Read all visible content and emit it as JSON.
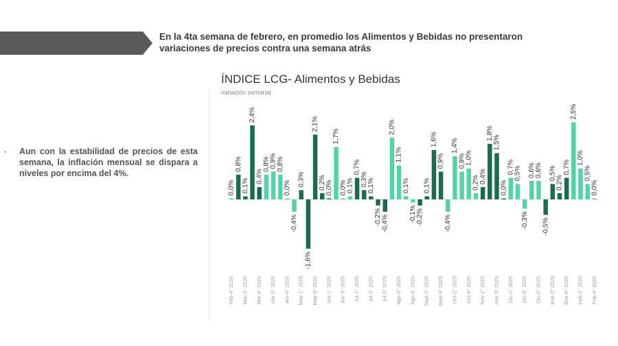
{
  "header": {
    "headline": "En la 4ta semana de febrero, en promedio los Alimentos y Bebidas no presentaron variaciones de precios contra una semana atrás",
    "banner_color": "#5a5a5a"
  },
  "bullet": {
    "text": "Aun con la estabilidad de precios de esta semana, la inflación mensual se dispara a niveles por encima del 4%."
  },
  "chart_data": {
    "type": "bar",
    "title": "ÍNDICE LCG- Alimentos y Bebidas",
    "subtitle": "variación semanal",
    "colors": {
      "dark": "#1b6b50",
      "light": "#52d3aa"
    },
    "tick_labels": [
      "Feb-4° 2025",
      "Mar-2° 2025",
      "Mar-4° 2025",
      "Abr-2° 2025",
      "Abr-4° 2025",
      "May-1° 2025",
      "May-3° 2025",
      "Jun-1° 2025",
      "Jun-3° 2025",
      "Jul-1° 2025",
      "Jul-3° 2025",
      "Jul-5° 2025",
      "Ago-2° 2025",
      "Ago-4° 2025",
      "Sept-2° 2025",
      "Sept-4° 2025",
      "Oct-2° 2025",
      "Oct-4° 2025",
      "Nov-1° 2025",
      "Nov-3° 2025",
      "Dic-1° 2025",
      "Dic-3° 2025",
      "Dic-5° 2025",
      "Ene-2° 2026",
      "Ene-4° 2026",
      "Feb-2° 2026",
      "Feb-4° 2026"
    ],
    "values": [
      0.0,
      0.8,
      0.1,
      2.4,
      0.4,
      0.8,
      0.9,
      0.8,
      0.0,
      -0.4,
      0.3,
      -1.6,
      2.1,
      0.2,
      0.0,
      1.7,
      0.0,
      0.1,
      0.7,
      0.3,
      0.1,
      -0.2,
      -0.4,
      2.0,
      1.1,
      0.1,
      -0.1,
      -0.2,
      0.1,
      1.6,
      0.9,
      -0.4,
      1.4,
      0.9,
      1.0,
      0.2,
      0.4,
      1.8,
      1.5,
      0.0,
      0.7,
      0.5,
      -0.3,
      0.6,
      0.6,
      -0.5,
      0.5,
      0.2,
      0.7,
      2.5,
      1.0,
      0.5,
      0.0
    ],
    "data_labels": [
      "0,0%",
      "0,8%",
      "0,1%",
      "2,4%",
      "0,4%",
      "0,8%",
      "0,9%",
      "0,8%",
      "0,0%",
      "-0,4%",
      "0,3%",
      "-1,6%",
      "2,1%",
      "0,2%",
      "0,0%",
      "1,7%",
      "0,0%",
      "0,1%",
      "0,7%",
      "0,3%",
      "0,1%",
      "-0,2%",
      "-0,4%",
      "2,0%",
      "1,1%",
      "0,1%",
      "-0,1%",
      "-0,2%",
      "0,1%",
      "1,6%",
      "0,9%",
      "-0,4%",
      "1,4%",
      "0,9%",
      "1,0%",
      "0,2%",
      "0,4%",
      "1,8%",
      "1,5%",
      "0,0%",
      "0,7%",
      "0,5%",
      "-0,3%",
      "0,6%",
      "0,6%",
      "-0,5%",
      "0,5%",
      "0,2%",
      "0,7%",
      "2,5%",
      "1,0%",
      "0,5%",
      "0,0%"
    ],
    "bar_color": [
      "light",
      "dark",
      "dark",
      "dark",
      "dark",
      "light",
      "light",
      "light",
      "light",
      "light",
      "dark",
      "dark",
      "dark",
      "dark",
      "dark",
      "light",
      "light",
      "light",
      "dark",
      "dark",
      "dark",
      "dark",
      "dark",
      "light",
      "light",
      "light",
      "light",
      "dark",
      "dark",
      "dark",
      "dark",
      "light",
      "light",
      "light",
      "light",
      "light",
      "dark",
      "dark",
      "dark",
      "dark",
      "light",
      "light",
      "light",
      "light",
      "light",
      "dark",
      "dark",
      "dark",
      "dark",
      "light",
      "light",
      "light",
      "light"
    ],
    "unit": "%",
    "grid": false,
    "legend": "none"
  }
}
